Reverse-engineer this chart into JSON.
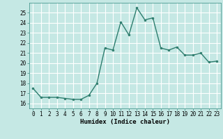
{
  "x": [
    0,
    1,
    2,
    3,
    4,
    5,
    6,
    7,
    8,
    9,
    10,
    11,
    12,
    13,
    14,
    15,
    16,
    17,
    18,
    19,
    20,
    21,
    22,
    23
  ],
  "y": [
    17.5,
    16.6,
    16.6,
    16.6,
    16.5,
    16.4,
    16.4,
    16.8,
    18.0,
    21.5,
    21.3,
    24.1,
    22.8,
    25.5,
    24.3,
    24.5,
    21.5,
    21.3,
    21.6,
    20.8,
    20.8,
    21.0,
    20.1,
    20.2
  ],
  "line_color": "#2e7d6e",
  "marker": "o",
  "marker_size": 2.0,
  "line_width": 1.0,
  "bg_color": "#c5e8e4",
  "grid_color": "#ffffff",
  "xlabel": "Humidex (Indice chaleur)",
  "xlim": [
    -0.5,
    23.5
  ],
  "ylim": [
    15.5,
    26.0
  ],
  "yticks": [
    16,
    17,
    18,
    19,
    20,
    21,
    22,
    23,
    24,
    25
  ],
  "xticks": [
    0,
    1,
    2,
    3,
    4,
    5,
    6,
    7,
    8,
    9,
    10,
    11,
    12,
    13,
    14,
    15,
    16,
    17,
    18,
    19,
    20,
    21,
    22,
    23
  ],
  "tick_fontsize": 5.5,
  "label_fontsize": 6.5,
  "spine_color": "#4a9990"
}
